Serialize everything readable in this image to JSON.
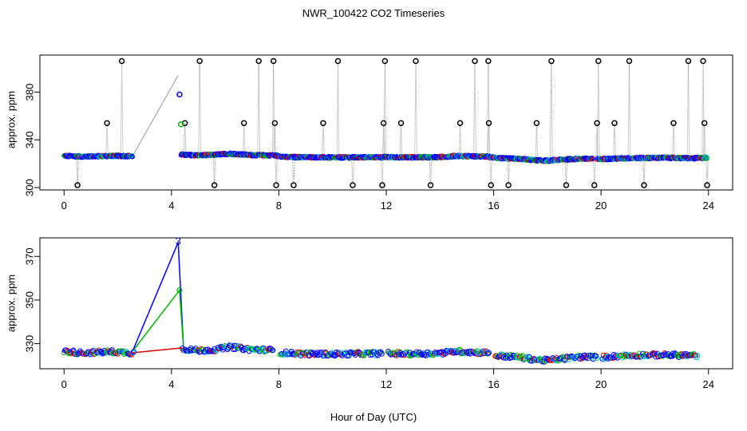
{
  "colors": {
    "black": "#000000",
    "blue": "#0000ff",
    "green": "#00bb00",
    "red": "#e00000",
    "cyan": "#00cccc",
    "grey": "#9a9a9a"
  },
  "chart_data": [
    {
      "type": "scatter",
      "id": "top",
      "title": "NWR_100422  CO2 Timeseries",
      "xlabel": "",
      "ylabel": "approx. ppm",
      "xlim": [
        -0.9,
        24.9
      ],
      "ylim": [
        298,
        411
      ],
      "xticks": [
        0,
        4,
        8,
        12,
        16,
        20,
        24
      ],
      "xtick_labels": [
        "0",
        "4",
        "8",
        "12",
        "16",
        "20",
        "24"
      ],
      "yticks": [
        300,
        340,
        380
      ],
      "ytick_labels": [
        "300",
        "340",
        "380"
      ],
      "grid": false,
      "baseline": [
        [
          0,
          326.5
        ],
        [
          0.6,
          326
        ],
        [
          1.2,
          326.2
        ],
        [
          1.8,
          326.5
        ],
        [
          2.5,
          326.4
        ],
        [
          4.4,
          327.5
        ],
        [
          5,
          327
        ],
        [
          5.6,
          327.5
        ],
        [
          6.2,
          328.4
        ],
        [
          7,
          327.2
        ],
        [
          7.8,
          327
        ],
        [
          8.3,
          325.5
        ],
        [
          9,
          325.5
        ],
        [
          10,
          325.2
        ],
        [
          11,
          325.3
        ],
        [
          12,
          325.5
        ],
        [
          13,
          325.3
        ],
        [
          14,
          325.5
        ],
        [
          14.6,
          326.5
        ],
        [
          15.2,
          326.2
        ],
        [
          15.8,
          325.8
        ],
        [
          16.3,
          324.5
        ],
        [
          17,
          324
        ],
        [
          17.5,
          323
        ],
        [
          18,
          322.5
        ],
        [
          18.6,
          323.5
        ],
        [
          19.3,
          324.2
        ],
        [
          19.9,
          323.8
        ],
        [
          20.6,
          324.3
        ],
        [
          21.5,
          324.8
        ],
        [
          22.5,
          325
        ],
        [
          23.4,
          324.5
        ],
        [
          23.9,
          325
        ]
      ],
      "gaps": [
        [
          2.55,
          4.35
        ],
        [
          19.7,
          19.85
        ]
      ],
      "gap_line": [
        [
          2.55,
          326.4
        ],
        [
          4.25,
          394
        ]
      ],
      "spikes": [
        {
          "x": 0.5,
          "y": 302
        },
        {
          "x": 1.6,
          "y": 354
        },
        {
          "x": 2.15,
          "y": 406
        },
        {
          "x": 4.5,
          "y": 354
        },
        {
          "x": 5.05,
          "y": 406
        },
        {
          "x": 5.6,
          "y": 302
        },
        {
          "x": 6.7,
          "y": 354
        },
        {
          "x": 7.25,
          "y": 406
        },
        {
          "x": 7.8,
          "y": 406
        },
        {
          "x": 7.85,
          "y": 354
        },
        {
          "x": 7.9,
          "y": 302
        },
        {
          "x": 8.55,
          "y": 302
        },
        {
          "x": 9.65,
          "y": 354
        },
        {
          "x": 10.2,
          "y": 406
        },
        {
          "x": 10.75,
          "y": 302
        },
        {
          "x": 11.85,
          "y": 302
        },
        {
          "x": 11.9,
          "y": 354
        },
        {
          "x": 11.95,
          "y": 406
        },
        {
          "x": 12.55,
          "y": 354
        },
        {
          "x": 13.1,
          "y": 406
        },
        {
          "x": 13.65,
          "y": 302
        },
        {
          "x": 14.75,
          "y": 354
        },
        {
          "x": 15.3,
          "y": 406
        },
        {
          "x": 15.8,
          "y": 406
        },
        {
          "x": 15.82,
          "y": 354
        },
        {
          "x": 15.9,
          "y": 302
        },
        {
          "x": 16.55,
          "y": 302
        },
        {
          "x": 17.6,
          "y": 354
        },
        {
          "x": 18.15,
          "y": 406
        },
        {
          "x": 18.7,
          "y": 302
        },
        {
          "x": 19.75,
          "y": 302
        },
        {
          "x": 19.85,
          "y": 354
        },
        {
          "x": 19.9,
          "y": 406
        },
        {
          "x": 20.5,
          "y": 354
        },
        {
          "x": 21.05,
          "y": 406
        },
        {
          "x": 21.6,
          "y": 302
        },
        {
          "x": 22.7,
          "y": 354
        },
        {
          "x": 23.25,
          "y": 406
        },
        {
          "x": 23.8,
          "y": 406
        },
        {
          "x": 23.85,
          "y": 354
        },
        {
          "x": 23.95,
          "y": 302
        }
      ],
      "outliers": [
        {
          "x": 4.3,
          "y": 378,
          "color": "blue"
        },
        {
          "x": 4.35,
          "y": 353,
          "color": "green"
        }
      ]
    },
    {
      "type": "scatter",
      "id": "bottom",
      "title": "",
      "xlabel": "Hour of Day (UTC)",
      "ylabel": "approx. ppm",
      "xlim": [
        -0.9,
        24.9
      ],
      "ylim": [
        318.5,
        378.5
      ],
      "xticks": [
        0,
        4,
        8,
        12,
        16,
        20,
        24
      ],
      "xtick_labels": [
        "0",
        "4",
        "8",
        "12",
        "16",
        "20",
        "24"
      ],
      "yticks": [
        330,
        350,
        370
      ],
      "ytick_labels": [
        "330",
        "350",
        "370"
      ],
      "grid": false,
      "baseline": [
        [
          0,
          326.5
        ],
        [
          0.6,
          325.8
        ],
        [
          1.2,
          326
        ],
        [
          1.8,
          326.3
        ],
        [
          2.5,
          325.8
        ],
        [
          4.5,
          327.5
        ],
        [
          5,
          326.8
        ],
        [
          5.6,
          327.2
        ],
        [
          6.2,
          328.5
        ],
        [
          7,
          327.3
        ],
        [
          7.7,
          327
        ],
        [
          8.1,
          325.8
        ],
        [
          9,
          325.3
        ],
        [
          10,
          325.2
        ],
        [
          11,
          325.4
        ],
        [
          11.8,
          325.5
        ],
        [
          12.1,
          325.5
        ],
        [
          13,
          325.3
        ],
        [
          14,
          325.6
        ],
        [
          14.6,
          326.5
        ],
        [
          15.2,
          326.1
        ],
        [
          15.8,
          325.8
        ],
        [
          16.1,
          324.5
        ],
        [
          17,
          323.8
        ],
        [
          17.5,
          322.8
        ],
        [
          18,
          322.3
        ],
        [
          18.6,
          323.2
        ],
        [
          19.3,
          324
        ],
        [
          19.8,
          323.8
        ],
        [
          20.1,
          323.8
        ],
        [
          20.6,
          324.3
        ],
        [
          21.5,
          324.8
        ],
        [
          22.5,
          324.8
        ],
        [
          23.6,
          324.5
        ]
      ],
      "gaps": [
        [
          2.6,
          4.4
        ],
        [
          7.8,
          8.05
        ],
        [
          11.85,
          12.05
        ],
        [
          15.85,
          16.05
        ],
        [
          19.85,
          20.05
        ]
      ],
      "lines": [
        {
          "color": "blue",
          "points": [
            [
              2.55,
              326.5
            ],
            [
              4.25,
              376.5
            ],
            [
              4.45,
              327.5
            ]
          ]
        },
        {
          "color": "green",
          "points": [
            [
              2.55,
              326.5
            ],
            [
              4.3,
              354.5
            ],
            [
              4.45,
              327.5
            ]
          ]
        },
        {
          "color": "red",
          "points": [
            [
              2.55,
              325.8
            ],
            [
              4.35,
              328
            ],
            [
              4.5,
              327.5
            ]
          ]
        }
      ],
      "labels": [
        {
          "x": 4.25,
          "y": 377,
          "text": "3",
          "color": "blue"
        }
      ],
      "outliers": [
        {
          "x": 4.3,
          "y": 354.5,
          "color": "green"
        }
      ]
    }
  ]
}
